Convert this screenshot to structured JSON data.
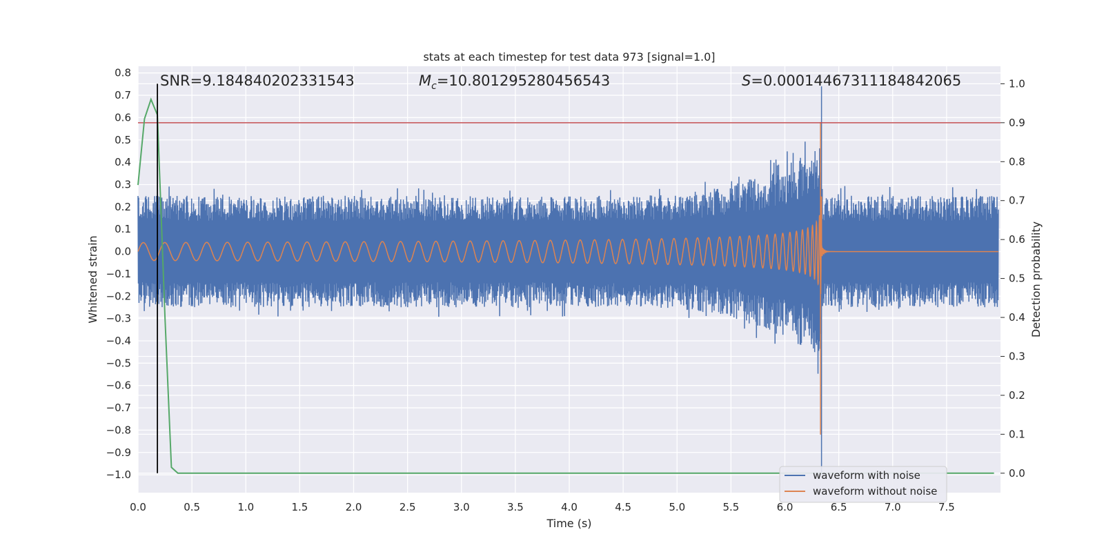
{
  "chart_data": {
    "type": "line",
    "title": "stats at each timestep for test data 973 [signal=1.0]",
    "xlabel": "Time (s)",
    "ylabel_left": "Whitened strain",
    "ylabel_right": "Detection probability",
    "xlim": [
      0.0,
      8.0
    ],
    "ylim_left": [
      -1.08,
      0.83
    ],
    "ylim_right": [
      -0.05,
      1.045
    ],
    "x_ticks": [
      "0.0",
      "0.5",
      "1.0",
      "1.5",
      "2.0",
      "2.5",
      "3.0",
      "3.5",
      "4.0",
      "4.5",
      "5.0",
      "5.5",
      "6.0",
      "6.5",
      "7.0",
      "7.5"
    ],
    "y_left_ticks": [
      "0.8",
      "0.7",
      "0.6",
      "0.5",
      "0.4",
      "0.3",
      "0.2",
      "0.1",
      "0.0",
      "−0.1",
      "−0.2",
      "−0.3",
      "−0.4",
      "−0.5",
      "−0.6",
      "−0.7",
      "−0.8",
      "−0.9",
      "−1.0"
    ],
    "y_right_ticks": [
      "1.0",
      "0.9",
      "0.8",
      "0.7",
      "0.6",
      "0.5",
      "0.4",
      "0.3",
      "0.2",
      "0.1",
      "0.0"
    ],
    "grid": true,
    "legend_location": "lower right",
    "annotations": {
      "snr": "SNR=9.184840202331543",
      "mc_symbol": "M",
      "mc_sub": "c",
      "mc_value": "=10.801295280456543",
      "s_symbol": "S",
      "s_value": "=0.00014467311184842065"
    },
    "merger_time": 6.34,
    "threshold": 0.9,
    "vertical_marker_time": 0.18,
    "series": [
      {
        "name": "waveform with noise",
        "color": "#4c72b0",
        "envelope_base": 0.25,
        "peak": 0.74,
        "min": -1.0
      },
      {
        "name": "waveform without noise",
        "color": "#dd8452",
        "amplitude_start": 0.04,
        "peak": 0.58,
        "min": -0.82
      },
      {
        "color": "#55a868",
        "axis": "right",
        "x": [
          0.0,
          0.06,
          0.12,
          0.18,
          0.25,
          0.31,
          0.37,
          0.5,
          1.0,
          2.0,
          3.0,
          4.0,
          5.0,
          6.0,
          7.0,
          7.94
        ],
        "y": [
          0.74,
          0.91,
          0.96,
          0.92,
          0.4,
          0.015,
          0.0,
          0.0,
          0.0,
          0.0,
          0.0,
          0.0,
          0.0,
          0.0,
          0.0,
          0.0
        ]
      }
    ],
    "colors": {
      "background": "#eaeaf2",
      "grid": "#ffffff",
      "threshold": "#c44e52",
      "marker": "#000000"
    }
  }
}
